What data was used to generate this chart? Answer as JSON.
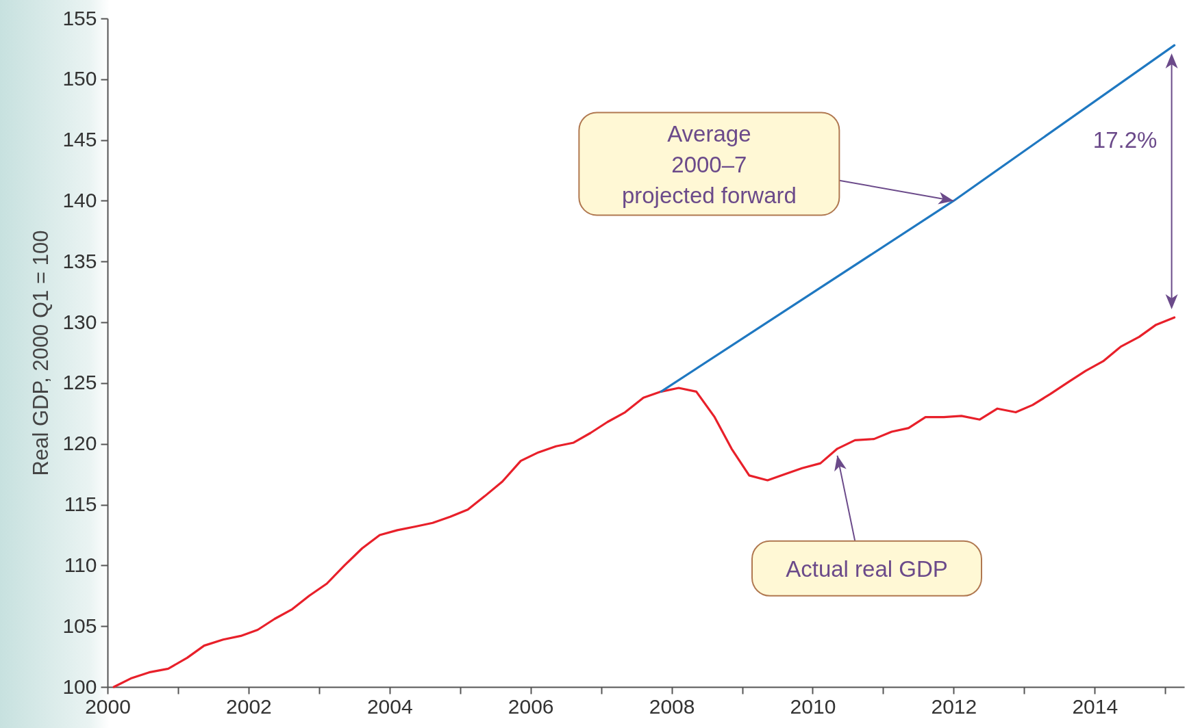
{
  "chart_data": {
    "type": "line",
    "ylabel": "Real GDP, 2000 Q1 = 100",
    "xlim": [
      2000,
      2015.27
    ],
    "ylim": [
      100,
      155
    ],
    "xticks": [
      2000,
      {
        "value": 2001,
        "label": null
      },
      2002,
      {
        "value": 2003,
        "label": null
      },
      2004,
      {
        "value": 2005,
        "label": null
      },
      2006,
      {
        "value": 2007,
        "label": null
      },
      2008,
      {
        "value": 2009,
        "label": null
      },
      2010,
      {
        "value": 2011,
        "label": null
      },
      2012,
      {
        "value": 2013,
        "label": null
      },
      2014,
      {
        "value": 2015,
        "label": null
      }
    ],
    "yticks": [
      100,
      105,
      110,
      115,
      120,
      125,
      130,
      135,
      140,
      145,
      150,
      155
    ],
    "grid": false,
    "series": [
      {
        "color": "#e8202a",
        "x": [
          2000.09,
          2000.33,
          2000.59,
          2000.86,
          2001.13,
          2001.37,
          2001.64,
          2001.89,
          2002.13,
          2002.37,
          2002.62,
          2002.86,
          2003.11,
          2003.36,
          2003.61,
          2003.86,
          2004.11,
          2004.37,
          2004.61,
          2004.86,
          2005.11,
          2005.35,
          2005.6,
          2005.86,
          2006.11,
          2006.36,
          2006.61,
          2006.85,
          2007.09,
          2007.34,
          2007.6,
          2007.85,
          2008.1,
          2008.35,
          2008.61,
          2008.85,
          2009.1,
          2009.36,
          2009.6,
          2009.85,
          2010.11,
          2010.35,
          2010.6,
          2010.87,
          2011.12,
          2011.36,
          2011.6,
          2011.86,
          2012.11,
          2012.37,
          2012.62,
          2012.88,
          2013.12,
          2013.37,
          2013.63,
          2013.87,
          2014.12,
          2014.37,
          2014.63,
          2014.87,
          2015.13
        ],
        "values": [
          100,
          100.7,
          101.2,
          101.5,
          102.4,
          103.4,
          103.9,
          104.2,
          104.7,
          105.6,
          106.4,
          107.5,
          108.5,
          110.0,
          111.4,
          112.5,
          112.9,
          113.2,
          113.5,
          114.0,
          114.6,
          115.7,
          116.9,
          118.6,
          119.3,
          119.8,
          120.1,
          120.9,
          121.8,
          122.6,
          123.8,
          124.3,
          124.6,
          124.3,
          122.2,
          119.6,
          117.4,
          117.0,
          117.5,
          118.0,
          118.4,
          119.6,
          120.3,
          120.4,
          121.0,
          121.3,
          122.2,
          122.2,
          122.3,
          122.0,
          122.9,
          122.6,
          123.2,
          124.1,
          125.1,
          126.0,
          126.8,
          128.0,
          128.8,
          129.8,
          130.4
        ]
      },
      {
        "color": "#1f78c1",
        "x": [
          2007.85,
          2012.0,
          2015.13
        ],
        "values": [
          124.3,
          140.0,
          152.8
        ]
      }
    ],
    "annotations": [
      "Average\n2000–7\nprojected forward",
      "Actual real GDP",
      "17.2%"
    ]
  }
}
